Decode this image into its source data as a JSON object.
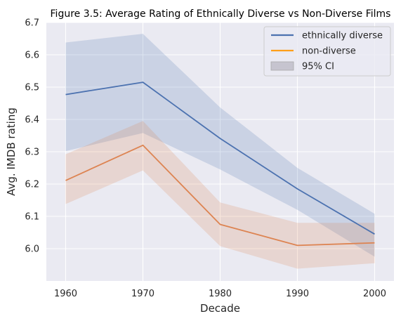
{
  "chart_data": {
    "type": "line",
    "title": "Figure 3.5: Average Rating of Ethnically Diverse vs Non-Diverse Films",
    "xlabel": "Decade",
    "ylabel": "Avg. IMDB rating",
    "x": [
      1960,
      1970,
      1980,
      1990,
      2000
    ],
    "x_tick_labels": [
      "1960",
      "1970",
      "1980",
      "1990",
      "2000"
    ],
    "xlim": [
      1957.5,
      2002.5
    ],
    "ylim": [
      5.9,
      6.7
    ],
    "y_ticks": [
      6.0,
      6.1,
      6.2,
      6.3,
      6.4,
      6.5,
      6.6,
      6.7
    ],
    "y_tick_labels": [
      "6.0",
      "6.1",
      "6.2",
      "6.3",
      "6.4",
      "6.5",
      "6.6",
      "6.7"
    ],
    "grid": true,
    "legend_position": "top-right",
    "series": [
      {
        "name": "ethnically diverse",
        "color": "#4c72b0",
        "values": [
          6.477,
          6.515,
          6.341,
          6.185,
          6.045
        ],
        "ci_lower": [
          6.302,
          6.358,
          6.245,
          6.12,
          5.975
        ],
        "ci_upper": [
          6.638,
          6.665,
          6.437,
          6.25,
          6.108
        ]
      },
      {
        "name": "non-diverse",
        "color": "#dd8452",
        "values": [
          6.211,
          6.32,
          6.075,
          6.01,
          6.018
        ],
        "ci_lower": [
          6.138,
          6.242,
          6.008,
          5.938,
          5.955
        ],
        "ci_upper": [
          6.292,
          6.395,
          6.143,
          6.08,
          6.08
        ]
      }
    ],
    "legend": [
      {
        "label": "ethnically diverse",
        "kind": "line",
        "color": "#4c72b0"
      },
      {
        "label": "non-diverse",
        "kind": "line",
        "color": "#ff9f1a"
      },
      {
        "label": "95% CI",
        "kind": "patch",
        "color": "#c6c4cf"
      }
    ],
    "background_color": "#eaeaf2",
    "grid_color": "#ffffff"
  }
}
